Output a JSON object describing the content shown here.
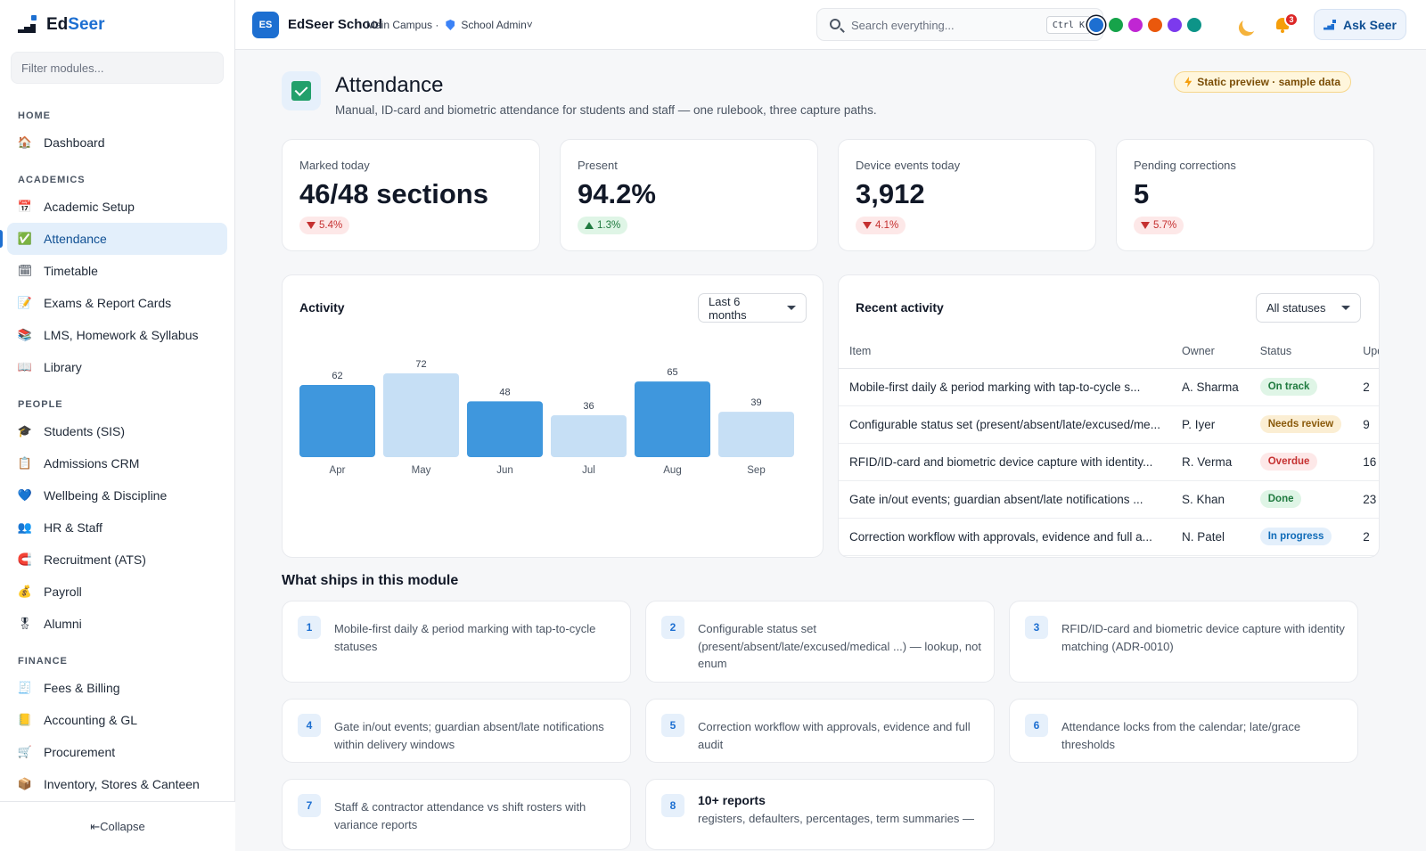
{
  "sidebar": {
    "brand": {
      "part1": "Ed",
      "part2": "Seer"
    },
    "filter_placeholder": "Filter modules...",
    "sections": {
      "home": "HOME",
      "academics": "ACADEMICS",
      "people": "PEOPLE",
      "finance": "FINANCE"
    },
    "items": {
      "dashboard": "Dashboard",
      "academic_setup": "Academic Setup",
      "attendance": "Attendance",
      "timetable": "Timetable",
      "exams": "Exams & Report Cards",
      "lms": "LMS, Homework & Syllabus",
      "library": "Library",
      "students": "Students (SIS)",
      "admissions": "Admissions CRM",
      "wellbeing": "Wellbeing & Discipline",
      "hr": "HR & Staff",
      "recruitment": "Recruitment (ATS)",
      "payroll": "Payroll",
      "alumni": "Alumni",
      "fees": "Fees & Billing",
      "accounting": "Accounting & GL",
      "procurement": "Procurement",
      "inventory": "Inventory, Stores & Canteen"
    },
    "collapse_label": "⇤Collapse"
  },
  "topbar": {
    "logo_initials": "ES",
    "school_name": "EdSeer School",
    "campus": "Main Campus ·",
    "role": "School Admin˅",
    "search_placeholder": "Search everything...",
    "search_shortcut": "Ctrl K",
    "theme_colors": [
      "#1d6fd1",
      "#16a34a",
      "#c026d3",
      "#ea580c",
      "#7c3aed",
      "#0d9488"
    ],
    "notification_count": "3",
    "ask_label": "Ask Seer"
  },
  "page": {
    "title": "Attendance",
    "subtitle": "Manual, ID-card and biometric attendance for students and staff — one rulebook, three capture paths.",
    "preview_badge": "Static preview · sample data"
  },
  "kpis": [
    {
      "label": "Marked today",
      "value": "46/48 sections",
      "delta": "5.4%",
      "direction": "down"
    },
    {
      "label": "Present",
      "value": "94.2%",
      "delta": "1.3%",
      "direction": "up"
    },
    {
      "label": "Device events today",
      "value": "3,912",
      "delta": "4.1%",
      "direction": "down"
    },
    {
      "label": "Pending corrections",
      "value": "5",
      "delta": "5.7%",
      "direction": "down"
    }
  ],
  "activity": {
    "title": "Activity",
    "range": "Last 6 months"
  },
  "chart_data": {
    "type": "bar",
    "categories": [
      "Apr",
      "May",
      "Jun",
      "Jul",
      "Aug",
      "Sep"
    ],
    "values": [
      62,
      72,
      48,
      36,
      65,
      39
    ],
    "colors": [
      "#3f97dd",
      "#c6dff5",
      "#3f97dd",
      "#c6dff5",
      "#3f97dd",
      "#c6dff5"
    ],
    "ylim": [
      0,
      72
    ],
    "grid": false
  },
  "recent": {
    "title": "Recent activity",
    "filter": "All statuses",
    "columns": [
      "Item",
      "Owner",
      "Status",
      "Upd"
    ],
    "rows": [
      {
        "item": "Mobile-first daily & period marking with tap-to-cycle s...",
        "owner": "A. Sharma",
        "status": "On track",
        "status_bg": "#dff5e6",
        "status_fg": "#1f7a3f",
        "upd": "2"
      },
      {
        "item": "Configurable status set (present/absent/late/excused/me...",
        "owner": "P. Iyer",
        "status": "Needs review",
        "status_bg": "#fbeed3",
        "status_fg": "#8a5a0b",
        "upd": "9"
      },
      {
        "item": "RFID/ID-card and biometric device capture with identity...",
        "owner": "R. Verma",
        "status": "Overdue",
        "status_bg": "#fde8e8",
        "status_fg": "#c53030",
        "upd": "16"
      },
      {
        "item": "Gate in/out events; guardian absent/late notifications ...",
        "owner": "S. Khan",
        "status": "Done",
        "status_bg": "#dff5e6",
        "status_fg": "#1f7a3f",
        "upd": "23"
      },
      {
        "item": "Correction workflow with approvals, evidence and full a...",
        "owner": "N. Patel",
        "status": "In progress",
        "status_bg": "#e3effb",
        "status_fg": "#0f6bb8",
        "upd": "2"
      }
    ]
  },
  "features": {
    "title": "What ships in this module",
    "items": [
      {
        "num": "1",
        "text": "Mobile-first daily & period marking with tap-to-cycle statuses"
      },
      {
        "num": "2",
        "text": "Configurable status set (present/absent/late/excused/medical ...) — lookup, not enum"
      },
      {
        "num": "3",
        "text": "RFID/ID-card and biometric device capture with identity matching (ADR-0010)"
      },
      {
        "num": "4",
        "text": "Gate in/out events; guardian absent/late notifications within delivery windows"
      },
      {
        "num": "5",
        "text": "Correction workflow with approvals, evidence and full audit"
      },
      {
        "num": "6",
        "text": "Attendance locks from the calendar; late/grace thresholds"
      },
      {
        "num": "7",
        "text": "Staff & contractor attendance vs shift rosters with variance reports"
      },
      {
        "num": "8",
        "title": "10+ reports",
        "text": "registers, defaulters, percentages, term summaries —"
      }
    ]
  }
}
